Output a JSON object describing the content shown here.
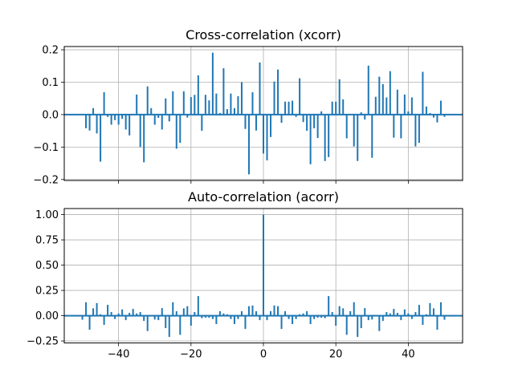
{
  "chart_data": [
    {
      "type": "bar",
      "title": "Cross-correlation (xcorr)",
      "xlabel": "",
      "ylabel": "",
      "xlim": [
        -55,
        55
      ],
      "ylim": [
        -0.203,
        0.21
      ],
      "grid": true,
      "color": "#1f77b4",
      "xticks": [
        -40,
        -20,
        0,
        20,
        40
      ],
      "xtick_labels": [
        "",
        "",
        "",
        "",
        ""
      ],
      "yticks": [
        0.2,
        0.1,
        0.0,
        -0.1,
        -0.2
      ],
      "ytick_labels": [
        "0.2",
        "0.1",
        "0.0",
        "−0.1",
        "−0.2"
      ],
      "x": [
        -50,
        -49,
        -48,
        -47,
        -46,
        -45,
        -44,
        -43,
        -42,
        -41,
        -40,
        -39,
        -38,
        -37,
        -36,
        -35,
        -34,
        -33,
        -32,
        -31,
        -30,
        -29,
        -28,
        -27,
        -26,
        -25,
        -24,
        -23,
        -22,
        -21,
        -20,
        -19,
        -18,
        -17,
        -16,
        -15,
        -14,
        -13,
        -12,
        -11,
        -10,
        -9,
        -8,
        -7,
        -6,
        -5,
        -4,
        -3,
        -2,
        -1,
        0,
        1,
        2,
        3,
        4,
        5,
        6,
        7,
        8,
        9,
        10,
        11,
        12,
        13,
        14,
        15,
        16,
        17,
        18,
        19,
        20,
        21,
        22,
        23,
        24,
        25,
        26,
        27,
        28,
        29,
        30,
        31,
        32,
        33,
        34,
        35,
        36,
        37,
        38,
        39,
        40,
        41,
        42,
        43,
        44,
        45,
        46,
        47,
        48,
        49,
        50
      ],
      "values": [
        0,
        -0.042,
        -0.049,
        0.02,
        -0.058,
        -0.145,
        0.069,
        -0.007,
        -0.031,
        -0.017,
        -0.031,
        -0.013,
        -0.046,
        -0.064,
        0.0,
        0.062,
        -0.1,
        -0.147,
        0.087,
        0.02,
        -0.031,
        -0.01,
        -0.046,
        0.05,
        -0.021,
        0.072,
        -0.105,
        -0.087,
        0.072,
        -0.009,
        0.054,
        0.061,
        0.121,
        -0.05,
        0.061,
        0.044,
        0.191,
        0.065,
        0.005,
        0.143,
        0.017,
        0.065,
        0.02,
        0.057,
        0.1,
        -0.044,
        -0.184,
        0.069,
        -0.049,
        0.161,
        -0.12,
        -0.141,
        -0.069,
        0.102,
        0.139,
        -0.025,
        0.04,
        0.04,
        0.043,
        -0.007,
        0.112,
        -0.023,
        -0.05,
        -0.153,
        -0.042,
        -0.072,
        0.01,
        -0.143,
        -0.131,
        0.04,
        0.04,
        0.109,
        0.047,
        -0.073,
        0.0,
        -0.098,
        -0.143,
        0.007,
        -0.015,
        0.151,
        -0.133,
        0.055,
        0.117,
        0.094,
        0.053,
        0.134,
        -0.071,
        0.077,
        -0.073,
        0.062,
        0.01,
        0.053,
        -0.098,
        -0.087,
        0.132,
        0.025,
        0.005,
        -0.009,
        -0.024,
        0.043,
        -0.007
      ]
    },
    {
      "type": "bar",
      "title": "Auto-correlation (acorr)",
      "xlabel": "",
      "ylabel": "",
      "xlim": [
        -55,
        55
      ],
      "ylim": [
        -0.27,
        1.06
      ],
      "grid": true,
      "color": "#1f77b4",
      "xticks": [
        -40,
        -20,
        0,
        20,
        40
      ],
      "xtick_labels": [
        "−40",
        "−20",
        "0",
        "20",
        "40"
      ],
      "yticks": [
        1.0,
        0.75,
        0.5,
        0.25,
        0.0,
        -0.25
      ],
      "ytick_labels": [
        "1.00",
        "0.75",
        "0.50",
        "0.25",
        "0.00",
        "−0.25"
      ],
      "x": [
        -50,
        -49,
        -48,
        -47,
        -46,
        -45,
        -44,
        -43,
        -42,
        -41,
        -40,
        -39,
        -38,
        -37,
        -36,
        -35,
        -34,
        -33,
        -32,
        -31,
        -30,
        -29,
        -28,
        -27,
        -26,
        -25,
        -24,
        -23,
        -22,
        -21,
        -20,
        -19,
        -18,
        -17,
        -16,
        -15,
        -14,
        -13,
        -12,
        -11,
        -10,
        -9,
        -8,
        -7,
        -6,
        -5,
        -4,
        -3,
        -2,
        -1,
        0,
        1,
        2,
        3,
        4,
        5,
        6,
        7,
        8,
        9,
        10,
        11,
        12,
        13,
        14,
        15,
        16,
        17,
        18,
        19,
        20,
        21,
        22,
        23,
        24,
        25,
        26,
        27,
        28,
        29,
        30,
        31,
        32,
        33,
        34,
        35,
        36,
        37,
        38,
        39,
        40,
        41,
        42,
        43,
        44,
        45,
        46,
        47,
        48,
        49,
        50
      ],
      "values": [
        -0.04,
        0.133,
        -0.139,
        0.073,
        0.125,
        0.014,
        -0.091,
        0.107,
        0.036,
        -0.033,
        0.022,
        0.062,
        -0.044,
        0.028,
        0.067,
        0.022,
        0.036,
        -0.052,
        -0.152,
        0.0,
        -0.038,
        -0.044,
        0.075,
        -0.123,
        -0.21,
        0.133,
        0.044,
        -0.189,
        0.073,
        0.094,
        -0.099,
        0.036,
        0.194,
        -0.025,
        -0.02,
        -0.02,
        -0.033,
        -0.083,
        0.044,
        0.022,
        0.014,
        -0.033,
        -0.083,
        -0.033,
        0.044,
        -0.131,
        0.094,
        0.101,
        0.044,
        -0.044,
        1.0,
        -0.044,
        0.044,
        0.101,
        0.094,
        -0.131,
        0.044,
        -0.033,
        -0.083,
        -0.033,
        0.014,
        0.022,
        0.044,
        -0.083,
        -0.033,
        -0.02,
        -0.02,
        -0.025,
        0.194,
        0.036,
        -0.099,
        0.094,
        0.073,
        -0.189,
        0.044,
        0.133,
        -0.21,
        -0.123,
        0.075,
        -0.044,
        -0.038,
        0.0,
        -0.152,
        -0.052,
        0.036,
        0.022,
        0.067,
        0.028,
        -0.044,
        0.062,
        0.022,
        -0.033,
        0.036,
        0.107,
        -0.091,
        0.014,
        0.125,
        0.073,
        -0.139,
        0.133,
        -0.04
      ]
    }
  ]
}
